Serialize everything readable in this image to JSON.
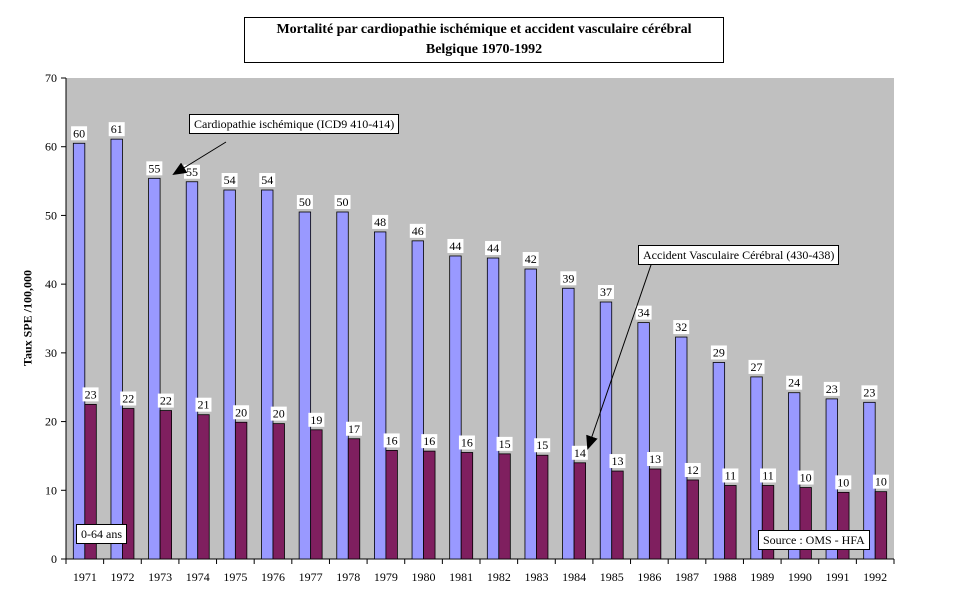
{
  "chart_data": {
    "type": "bar",
    "title_line1": "Mortalité par cardiopathie ischémique et  accident vasculaire cérébral",
    "title_line2": "Belgique 1970-1992",
    "ylabel": "Taux SPE /100,000",
    "ylim": [
      0,
      70
    ],
    "yticks": [
      0,
      10,
      20,
      30,
      40,
      50,
      60,
      70
    ],
    "categories": [
      "1971",
      "1972",
      "1973",
      "1974",
      "1975",
      "1976",
      "1977",
      "1978",
      "1979",
      "1980",
      "1981",
      "1982",
      "1983",
      "1984",
      "1985",
      "1986",
      "1987",
      "1988",
      "1989",
      "1990",
      "1991",
      "1992"
    ],
    "series": [
      {
        "name": "Cardiopathie ischémique (ICD9 410-414)",
        "color": "#9999ff",
        "values": [
          60.5,
          61.1,
          55.4,
          54.9,
          53.7,
          53.7,
          50.5,
          50.5,
          47.6,
          46.3,
          44.1,
          43.8,
          42.2,
          39.4,
          37.4,
          34.4,
          32.3,
          28.6,
          26.5,
          24.2,
          23.3,
          22.8
        ],
        "labels": [
          "60",
          "61",
          "55",
          "55",
          "54",
          "54",
          "50",
          "50",
          "48",
          "46",
          "44",
          "44",
          "42",
          "39",
          "37",
          "34",
          "32",
          "29",
          "27",
          "24",
          "23",
          "23"
        ]
      },
      {
        "name": "Accident Vasculaire Cérébral  (430-438)",
        "color": "#7f1f5f",
        "values": [
          22.5,
          21.9,
          21.6,
          21.0,
          19.9,
          19.7,
          18.8,
          17.5,
          15.8,
          15.7,
          15.5,
          15.3,
          15.1,
          14.0,
          12.8,
          13.1,
          11.5,
          10.7,
          10.7,
          10.4,
          9.7,
          9.8
        ],
        "labels": [
          "23",
          "22",
          "22",
          "21",
          "20",
          "20",
          "19",
          "17",
          "16",
          "16",
          "16",
          "15",
          "15",
          "14",
          "13",
          "13",
          "12",
          "11",
          "11",
          "10",
          "10",
          "10"
        ]
      }
    ],
    "annotation_age": "0-64 ans",
    "source": "Source : OMS - HFA",
    "plot_background": "#c0c0c0",
    "grid": false
  }
}
